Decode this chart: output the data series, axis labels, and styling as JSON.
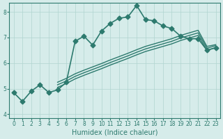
{
  "xlabel": "Humidex (Indice chaleur)",
  "bg_color": "#d6ecea",
  "line_color": "#2d7a6e",
  "grid_color": "#b0d4d0",
  "xlim": [
    -0.5,
    23.5
  ],
  "ylim": [
    3.85,
    8.35
  ],
  "xticks": [
    0,
    1,
    2,
    3,
    4,
    5,
    6,
    7,
    8,
    9,
    10,
    11,
    12,
    13,
    14,
    15,
    16,
    17,
    18,
    19,
    20,
    21,
    22,
    23
  ],
  "yticks": [
    4,
    5,
    6,
    7,
    8
  ],
  "series": [
    {
      "x": [
        0,
        1,
        2,
        3,
        4,
        5,
        6,
        7,
        8,
        9,
        10,
        11,
        12,
        13,
        14,
        15,
        16,
        17,
        18,
        19,
        20,
        21,
        22,
        23
      ],
      "y": [
        4.85,
        4.5,
        4.9,
        5.15,
        4.85,
        4.95,
        5.25,
        6.85,
        7.05,
        6.7,
        7.25,
        7.55,
        7.75,
        7.8,
        8.25,
        7.7,
        7.65,
        7.45,
        7.35,
        7.05,
        6.95,
        6.95,
        6.5,
        6.6
      ],
      "marker": "D",
      "markersize": 3.5,
      "linewidth": 1.2,
      "zorder": 4
    },
    {
      "x": [
        5,
        6,
        7,
        8,
        9,
        10,
        11,
        12,
        13,
        14,
        15,
        16,
        17,
        18,
        19,
        20,
        21,
        22,
        23
      ],
      "y": [
        5.05,
        5.2,
        5.38,
        5.52,
        5.65,
        5.78,
        5.92,
        6.05,
        6.18,
        6.32,
        6.45,
        6.55,
        6.65,
        6.75,
        6.88,
        6.98,
        7.08,
        6.5,
        6.6
      ],
      "marker": "",
      "markersize": 0,
      "linewidth": 1.0,
      "zorder": 2
    },
    {
      "x": [
        5,
        6,
        7,
        8,
        9,
        10,
        11,
        12,
        13,
        14,
        15,
        16,
        17,
        18,
        19,
        20,
        21,
        22,
        23
      ],
      "y": [
        5.15,
        5.3,
        5.48,
        5.62,
        5.75,
        5.88,
        6.02,
        6.15,
        6.28,
        6.42,
        6.55,
        6.65,
        6.75,
        6.85,
        6.98,
        7.08,
        7.18,
        6.58,
        6.68
      ],
      "marker": "",
      "markersize": 0,
      "linewidth": 1.0,
      "zorder": 2
    },
    {
      "x": [
        5,
        6,
        7,
        8,
        9,
        10,
        11,
        12,
        13,
        14,
        15,
        16,
        17,
        18,
        19,
        20,
        21,
        22,
        23
      ],
      "y": [
        5.25,
        5.4,
        5.58,
        5.72,
        5.85,
        5.98,
        6.12,
        6.25,
        6.38,
        6.52,
        6.65,
        6.75,
        6.85,
        6.95,
        7.08,
        7.18,
        7.28,
        6.65,
        6.72
      ],
      "marker": "",
      "markersize": 0,
      "linewidth": 1.0,
      "zorder": 2
    }
  ]
}
